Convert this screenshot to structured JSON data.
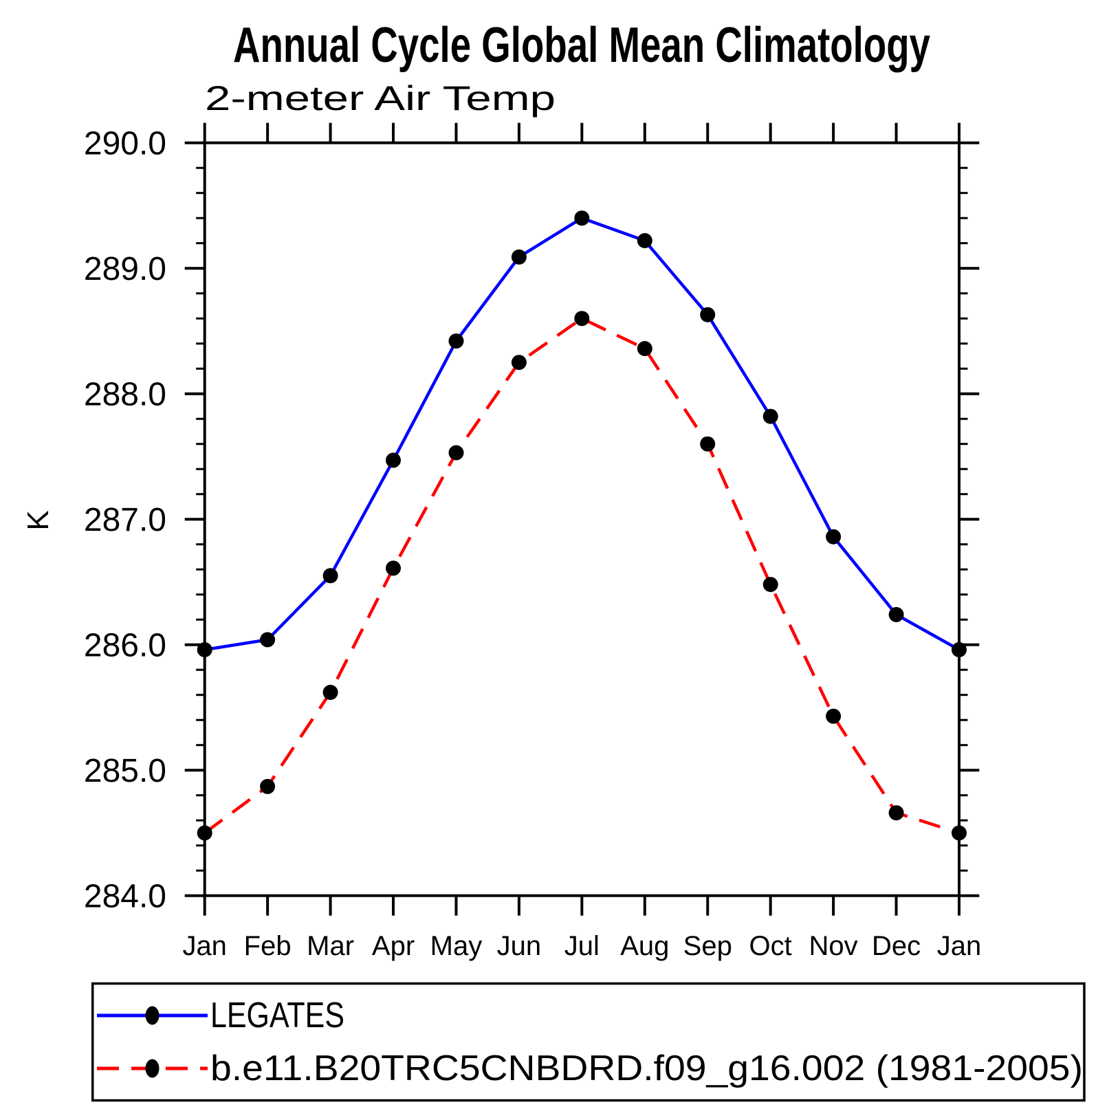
{
  "chart_data": {
    "type": "line",
    "title": "Annual Cycle Global Mean Climatology",
    "subtitle": "2-meter Air Temp",
    "ylabel": "K",
    "xlabel": "",
    "ylim": [
      284.0,
      290.0
    ],
    "y_major_step": 1.0,
    "y_minor_step": 0.2,
    "yticks": [
      290.0,
      289.0,
      288.0,
      287.0,
      286.0,
      285.0,
      284.0
    ],
    "ytick_labels": [
      "290.0",
      "289.0",
      "288.0",
      "287.0",
      "286.0",
      "285.0",
      "284.0"
    ],
    "categories": [
      "Jan",
      "Feb",
      "Mar",
      "Apr",
      "May",
      "Jun",
      "Jul",
      "Aug",
      "Sep",
      "Oct",
      "Nov",
      "Dec",
      "Jan"
    ],
    "grid": false,
    "legend_position": "bottom-left-box",
    "colors": {
      "background": "#ffffff",
      "axis": "#000000",
      "marker": "#000000",
      "series1": "#0000ff",
      "series2": "#ff0000"
    },
    "series": [
      {
        "name": "LEGATES",
        "color": "#0000ff",
        "line_style": "solid",
        "marker": "circle",
        "marker_color": "#000000",
        "values": [
          285.96,
          286.04,
          286.55,
          287.47,
          288.42,
          289.09,
          289.4,
          289.22,
          288.63,
          287.82,
          286.86,
          286.24,
          285.96
        ]
      },
      {
        "name": "b.e11.B20TRC5CNBDRD.f09_g16.002 (1981-2005)",
        "color": "#ff0000",
        "line_style": "dashed",
        "marker": "circle",
        "marker_color": "#000000",
        "values": [
          284.5,
          284.87,
          285.62,
          286.61,
          287.53,
          288.25,
          288.6,
          288.36,
          287.6,
          286.48,
          285.43,
          284.66,
          284.5
        ]
      }
    ]
  }
}
